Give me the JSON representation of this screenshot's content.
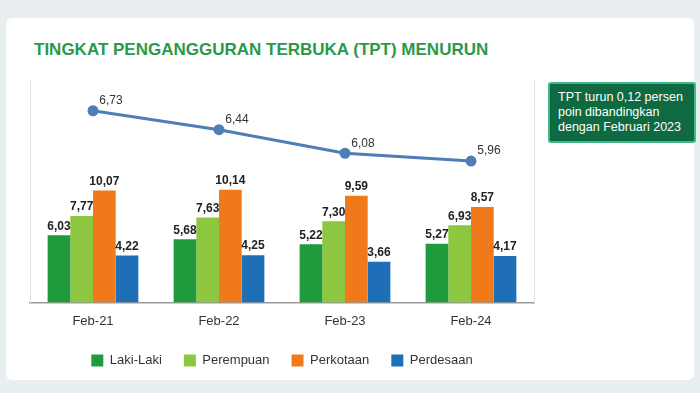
{
  "chart_data": {
    "type": "bar",
    "title": "TINGKAT PENGANGGURAN TERBUKA (TPT) MENURUN",
    "categories": [
      "Feb-21",
      "Feb-22",
      "Feb-23",
      "Feb-24"
    ],
    "series": [
      {
        "name": "Laki-Laki",
        "color": "#1f9a3c",
        "values": [
          6.03,
          5.68,
          5.22,
          5.27
        ],
        "value_labels": [
          "6,03",
          "5,68",
          "5,22",
          "5,27"
        ]
      },
      {
        "name": "Perempuan",
        "color": "#8dc63f",
        "values": [
          7.77,
          7.63,
          7.3,
          6.93
        ],
        "value_labels": [
          "7,77",
          "7,63",
          "7,30",
          "6,93"
        ]
      },
      {
        "name": "Perkotaan",
        "color": "#f07a1a",
        "values": [
          10.07,
          10.14,
          9.59,
          8.57
        ],
        "value_labels": [
          "10,07",
          "10,14",
          "9,59",
          "8,57"
        ]
      },
      {
        "name": "Perdesaan",
        "color": "#1f6fb6",
        "values": [
          4.22,
          4.25,
          3.66,
          4.17
        ],
        "value_labels": [
          "4,22",
          "4,25",
          "3,66",
          "4,17"
        ]
      },
      {
        "type": "line",
        "color": "#4f7db8",
        "marker": "circle",
        "axis": "y2",
        "values": [
          6.73,
          6.44,
          6.08,
          5.96
        ],
        "value_labels": [
          "6,73",
          "6,44",
          "6,08",
          "5,96"
        ]
      }
    ],
    "ylim": [
      0,
      20
    ],
    "y2lim": [
      3.8,
      7.2
    ],
    "grid": false,
    "legend": "bottom",
    "data_labels": true,
    "tick_labels": "x",
    "annotations": [
      "TPT turun 0,12 persen poin dibandingkan dengan Februari 2023"
    ]
  }
}
